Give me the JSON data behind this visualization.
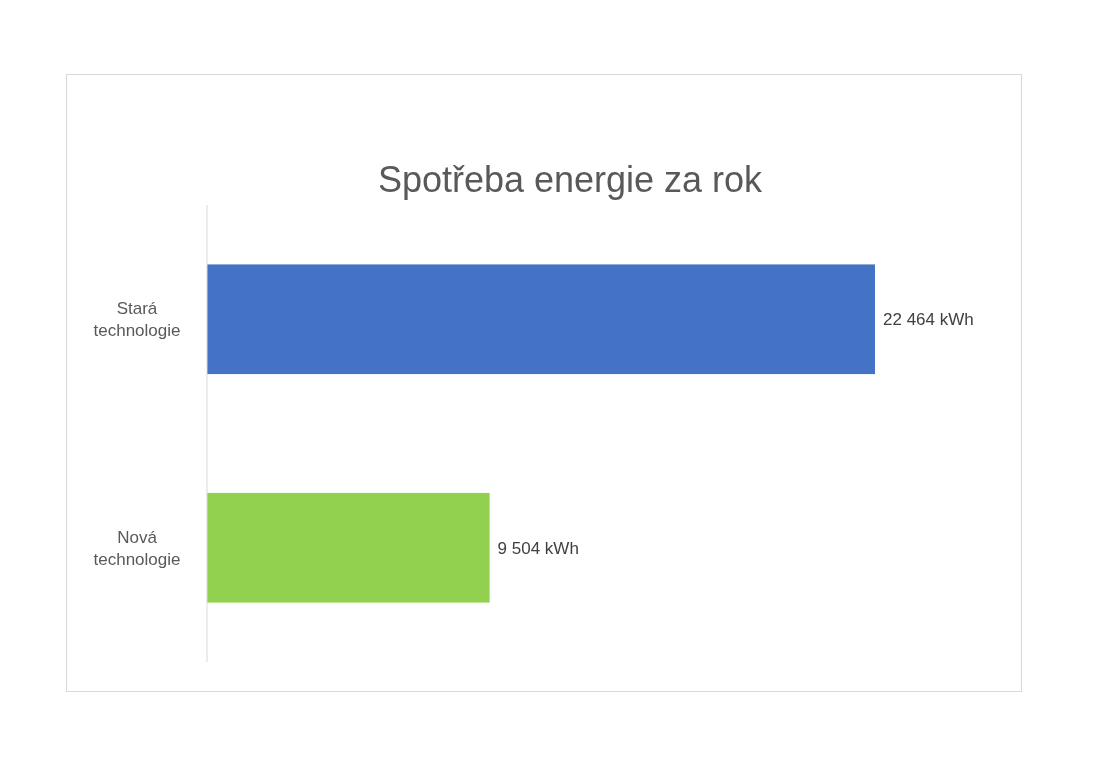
{
  "chart_data": {
    "type": "bar",
    "orientation": "horizontal",
    "title": "Spotřeba energie za rok",
    "categories": [
      "Stará technologie",
      "Nová technologie"
    ],
    "values": [
      22464,
      9504
    ],
    "colors": [
      "#4472c4",
      "#92d050"
    ],
    "value_labels": [
      "22 464 kWh",
      "9 504 kWh"
    ]
  }
}
